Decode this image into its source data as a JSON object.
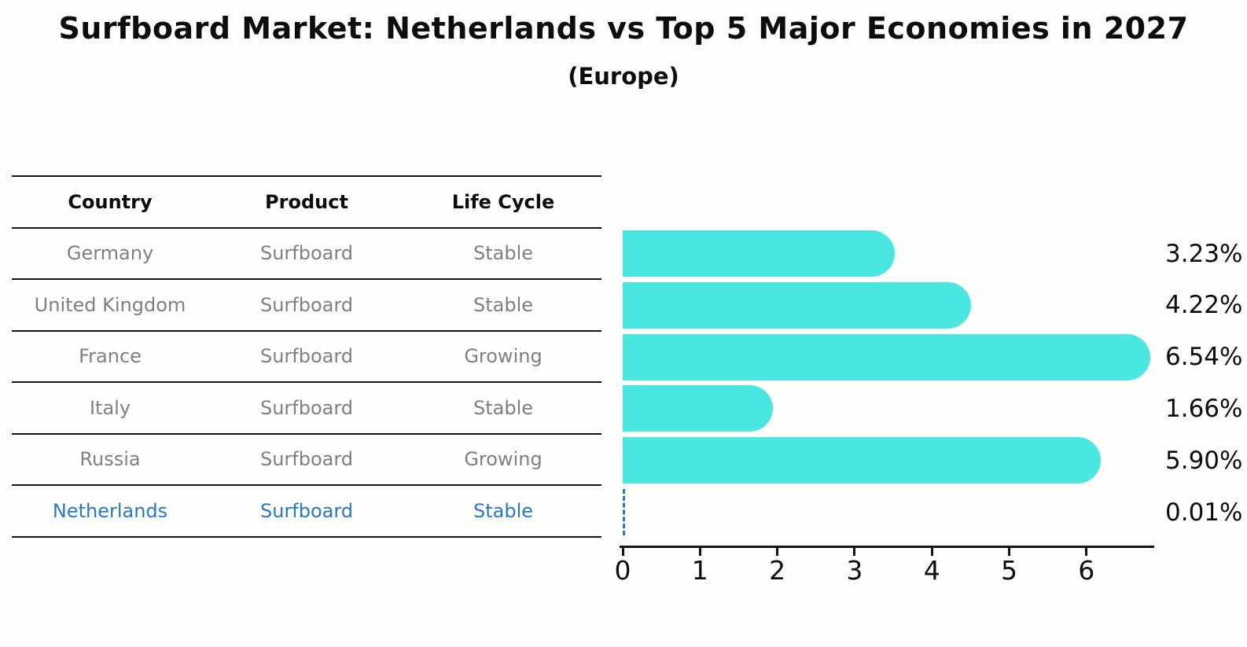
{
  "header": {
    "title": "Surfboard Market: Netherlands vs Top 5 Major Economies in 2027",
    "subtitle": "(Europe)"
  },
  "table": {
    "headers": [
      "Country",
      "Product",
      "Life Cycle"
    ],
    "rows": [
      {
        "country": "Germany",
        "product": "Surfboard",
        "life_cycle": "Stable"
      },
      {
        "country": "United Kingdom",
        "product": "Surfboard",
        "life_cycle": "Stable"
      },
      {
        "country": "France",
        "product": "Surfboard",
        "life_cycle": "Growing"
      },
      {
        "country": "Italy",
        "product": "Surfboard",
        "life_cycle": "Stable"
      },
      {
        "country": "Russia",
        "product": "Surfboard",
        "life_cycle": "Growing"
      },
      {
        "country": "Netherlands",
        "product": "Surfboard",
        "life_cycle": "Stable"
      }
    ],
    "highlight_row_index": 5
  },
  "chart_data": {
    "type": "bar",
    "orientation": "horizontal",
    "title": "Surfboard Market: Netherlands vs Top 5 Major Economies in 2027",
    "subtitle": "(Europe)",
    "categories": [
      "Germany",
      "United Kingdom",
      "France",
      "Italy",
      "Russia",
      "Netherlands"
    ],
    "values": [
      3.23,
      4.22,
      6.54,
      1.66,
      5.9,
      0.01
    ],
    "value_labels": [
      "3.23%",
      "4.22%",
      "6.54%",
      "1.66%",
      "5.90%",
      "0.01%"
    ],
    "x_ticks": [
      "0",
      "1",
      "2",
      "3",
      "4",
      "5",
      "6"
    ],
    "xlim": [
      0,
      6.87
    ],
    "grid": false,
    "legend": false,
    "bar_color": "#4ae6e1",
    "highlight_index": 5,
    "highlight_color": "#2878c8",
    "muted_text_color": "#7f7f7f"
  }
}
